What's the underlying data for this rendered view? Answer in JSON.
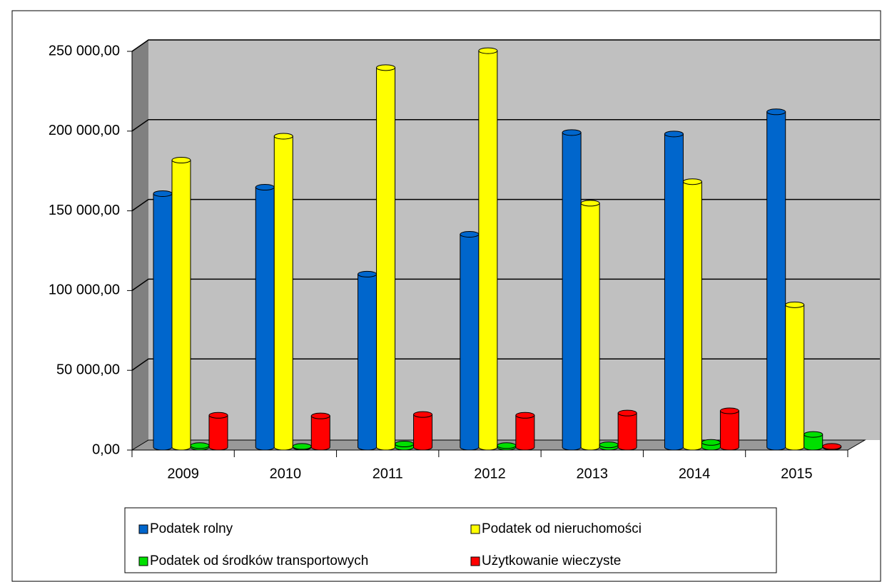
{
  "chart_data": {
    "type": "bar",
    "categories": [
      "2009",
      "2010",
      "2011",
      "2012",
      "2013",
      "2014",
      "2015"
    ],
    "series": [
      {
        "name": "Podatek rolny",
        "color": "#0066cc",
        "values": [
          159000,
          163000,
          108500,
          133500,
          197300,
          196400,
          210300
        ]
      },
      {
        "name": "Podatek od nieruchomości",
        "color": "#ffff00",
        "values": [
          180000,
          195000,
          238000,
          248600,
          153000,
          166500,
          89300
        ]
      },
      {
        "name": "Podatek od środków transportowych",
        "color": "#00e000",
        "values": [
          1000,
          500,
          2000,
          1000,
          1500,
          3000,
          8000
        ]
      },
      {
        "name": "Użytkowanie wieczyste",
        "color": "#ff0000",
        "values": [
          20000,
          19600,
          20500,
          20000,
          21400,
          22800,
          500
        ]
      }
    ],
    "ylim": [
      0,
      250000
    ],
    "yticks": [
      {
        "value": 0,
        "label": "0,00"
      },
      {
        "value": 50000,
        "label": "50 000,00"
      },
      {
        "value": 100000,
        "label": "100 000,00"
      },
      {
        "value": 150000,
        "label": "150 000,00"
      },
      {
        "value": 200000,
        "label": "200 000,00"
      },
      {
        "value": 250000,
        "label": "250 000,00"
      }
    ],
    "grid": true
  }
}
